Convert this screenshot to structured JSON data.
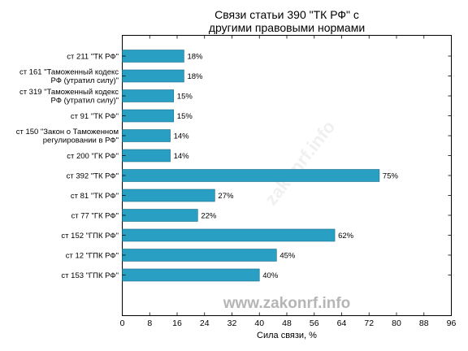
{
  "chart_data": {
    "type": "bar",
    "orientation": "horizontal",
    "title_lines": [
      "Связи статьи 390 \"ТК РФ\" с",
      "другими правовыми нормами"
    ],
    "categories": [
      [
        "ст 211 \"ТК РФ\""
      ],
      [
        "ст 161 \"Таможенный кодекс",
        "РФ (утратил силу)\""
      ],
      [
        "ст 319 \"Таможенный кодекс",
        "РФ (утратил силу)\""
      ],
      [
        "ст 91 \"ТК РФ\""
      ],
      [
        "ст 150 \"Закон о Таможенном",
        "регулировании в РФ\""
      ],
      [
        "ст 200 \"ГК РФ\""
      ],
      [
        "ст 392 \"ТК РФ\""
      ],
      [
        "ст 81 \"ТК РФ\""
      ],
      [
        "ст 77 \"ГК РФ\""
      ],
      [
        "ст 152 \"ГПК РФ\""
      ],
      [
        "ст 12 \"ГПК РФ\""
      ],
      [
        "ст 153 \"ГПК РФ\""
      ]
    ],
    "values": [
      18,
      18,
      15,
      15,
      14,
      14,
      75,
      27,
      22,
      62,
      45,
      40
    ],
    "value_labels": [
      "18%",
      "18%",
      "15%",
      "15%",
      "14%",
      "14%",
      "75%",
      "27%",
      "22%",
      "62%",
      "45%",
      "40%"
    ],
    "xlabel": "Сила связи, %",
    "xlim": [
      0,
      96
    ],
    "xticks": [
      "0",
      "8",
      "16",
      "24",
      "32",
      "40",
      "48",
      "56",
      "64",
      "72",
      "80",
      "88",
      "96"
    ],
    "bar_color": "#2a9fc4",
    "grid": false
  },
  "watermark": {
    "text": "www.zakonrf.info",
    "diagonal_text": "zakonrf.info"
  }
}
